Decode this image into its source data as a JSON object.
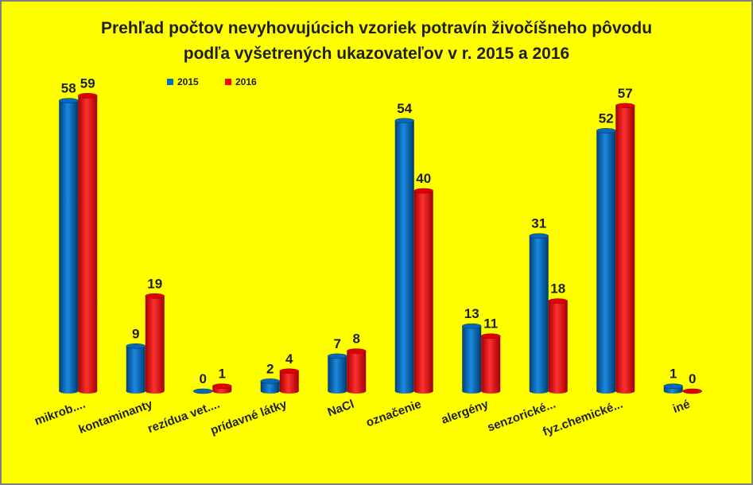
{
  "chart_data": {
    "type": "bar",
    "title": "Prehľad počtov nevyhovujúcich vzoriek potravín živočíšneho pôvodu",
    "subtitle": "podľa vyšetrených ukazovateľov v r. 2015 a 2016",
    "categories": [
      "mikrob....",
      "kontaminanty",
      "rezídua vet....",
      "prídavné látky",
      "NaCl",
      "označenie",
      "alergény",
      "senzorické...",
      "fyz.chemické...",
      "iné"
    ],
    "series": [
      {
        "name": "2015",
        "color": "#0070c0",
        "values": [
          58,
          9,
          0,
          2,
          7,
          54,
          13,
          31,
          52,
          1
        ]
      },
      {
        "name": "2016",
        "color": "#ff0000",
        "values": [
          59,
          19,
          1,
          4,
          8,
          40,
          11,
          18,
          57,
          0
        ]
      }
    ],
    "xlabel": "",
    "ylabel": "",
    "ylim": [
      0,
      60
    ],
    "grid": false,
    "legend": "top-left",
    "background": "#ffff00"
  }
}
